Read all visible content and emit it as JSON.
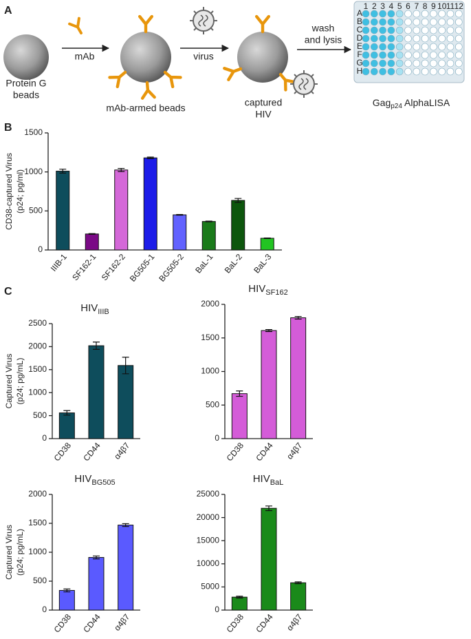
{
  "panel_labels": [
    "A",
    "B",
    "C"
  ],
  "diagram": {
    "beads_label": [
      "Protein G",
      "beads"
    ],
    "step1": "mAb",
    "armed_label": "mAb-armed beads",
    "step2": "virus",
    "captured_label": [
      "captured",
      "HIV"
    ],
    "step3": [
      "wash",
      "and lysis"
    ],
    "readout": {
      "main": "Gag",
      "sub": "p24",
      "rest": " AlphaLISA"
    },
    "plate": {
      "rows": [
        "A",
        "B",
        "C",
        "D",
        "E",
        "F",
        "G",
        "H"
      ],
      "columns": [
        "1",
        "2",
        "3",
        "4",
        "5",
        "6",
        "7",
        "8",
        "9",
        "10",
        "11",
        "12"
      ]
    }
  },
  "chart_data": [
    {
      "type": "bar",
      "ylabel": [
        "CD38-captured Virus",
        "(p24; pg/ml)"
      ],
      "categories": [
        "IIIB-1",
        "SF162-1",
        "SF162-2",
        "BG505-1",
        "BG505-2",
        "BaL-1",
        "BaL-2",
        "BaL-3"
      ],
      "values": [
        1010,
        205,
        1025,
        1180,
        450,
        365,
        635,
        150
      ],
      "errors": [
        25,
        5,
        20,
        10,
        5,
        5,
        25,
        3
      ],
      "colors": [
        "#0e4d5c",
        "#7a0a86",
        "#d468d8",
        "#1c1ce8",
        "#6262ff",
        "#1a7a1a",
        "#0d560d",
        "#22c422"
      ],
      "ylim": [
        0,
        1500
      ],
      "yticks": [
        0,
        500,
        1000,
        1500
      ]
    },
    {
      "type": "bar",
      "title": "HIV",
      "title_sub": "IIIB",
      "ylabel": [
        "Captured Virus",
        "(p24; pg/mL)"
      ],
      "categories": [
        "CD38",
        "CD44",
        "α4β7"
      ],
      "values": [
        560,
        2020,
        1590
      ],
      "errors": [
        50,
        80,
        180
      ],
      "color": "#0e4d5c",
      "ylim": [
        0,
        2500
      ],
      "yticks": [
        0,
        500,
        1000,
        1500,
        2000,
        2500
      ]
    },
    {
      "type": "bar",
      "title": "HIV",
      "title_sub": "SF162",
      "categories": [
        "CD38",
        "CD44",
        "α4β7"
      ],
      "values": [
        670,
        1610,
        1800
      ],
      "errors": [
        40,
        15,
        20
      ],
      "color": "#d45cd8",
      "ylim": [
        0,
        2000
      ],
      "yticks": [
        0,
        500,
        1000,
        1500,
        2000
      ]
    },
    {
      "type": "bar",
      "title": "HIV",
      "title_sub": "BG505",
      "ylabel": [
        "Captured Virus",
        "(p24; pg/mL)"
      ],
      "categories": [
        "CD38",
        "CD44",
        "α4β7"
      ],
      "values": [
        340,
        910,
        1470
      ],
      "errors": [
        25,
        25,
        25
      ],
      "color": "#5a5aff",
      "ylim": [
        0,
        2000
      ],
      "yticks": [
        0,
        500,
        1000,
        1500,
        2000
      ]
    },
    {
      "type": "bar",
      "title": "HIV",
      "title_sub": "BaL",
      "categories": [
        "CD38",
        "CD44",
        "α4β7"
      ],
      "values": [
        2800,
        22000,
        5900
      ],
      "errors": [
        200,
        500,
        200
      ],
      "color": "#1a8a1a",
      "ylim": [
        0,
        25000
      ],
      "yticks": [
        0,
        5000,
        10000,
        15000,
        20000,
        25000
      ]
    }
  ]
}
